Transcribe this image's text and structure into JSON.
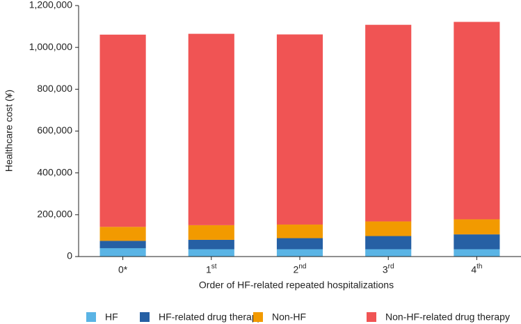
{
  "chart_data": {
    "type": "stacked_bar",
    "x_label": "Order of HF-related repeated hospitalizations",
    "y_label": "Healthcare cost (¥)",
    "categories": [
      "0*",
      "1st",
      "2nd",
      "3rd",
      "4th"
    ],
    "series": [
      {
        "name": "HF",
        "color": "#5ab4e5",
        "values": [
          40000,
          35000,
          35000,
          35000,
          35000
        ]
      },
      {
        "name": "HF-related drug therapy",
        "color": "#2660a4",
        "values": [
          35000,
          45000,
          53000,
          63000,
          71000
        ]
      },
      {
        "name": "Non-HF",
        "color": "#f29a00",
        "values": [
          67000,
          70000,
          65000,
          70000,
          72000
        ]
      },
      {
        "name": "Non-HF-related drug therapy",
        "color": "#f05454",
        "values": [
          919000,
          915000,
          909000,
          940000,
          944000
        ]
      }
    ],
    "ylim": [
      0,
      1200000
    ],
    "yticks": [
      0,
      {
        "value": 200000,
        "label": "200,000"
      },
      {
        "value": 400000,
        "label": "400,000"
      },
      {
        "value": 600000,
        "label": "600,000"
      },
      {
        "value": 800000,
        "label": "800,000"
      },
      {
        "value": 1000000,
        "label": "1,000,000"
      },
      {
        "value": 1200000,
        "label": "1,200,000"
      }
    ],
    "legend": "bottom"
  }
}
